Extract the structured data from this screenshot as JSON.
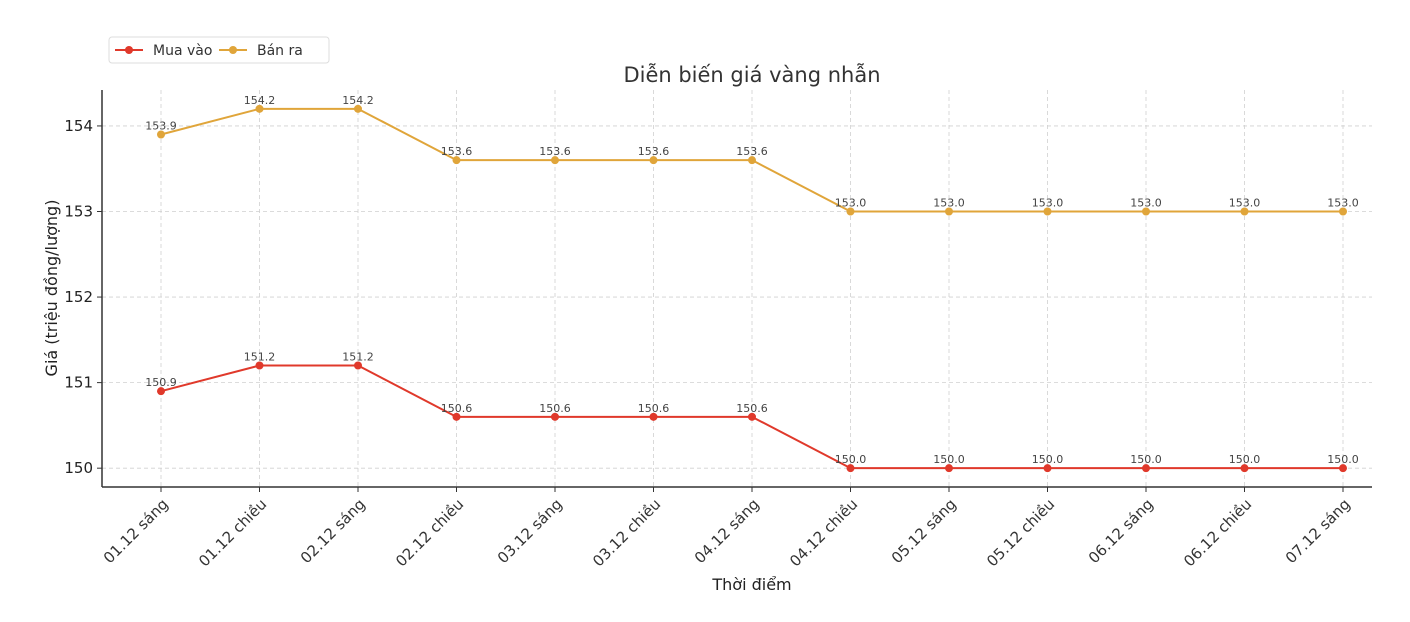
{
  "chart_data": {
    "type": "line",
    "title": "Diễn biến giá vàng nhẫn",
    "xlabel": "Thời điểm",
    "ylabel": "Giá (triệu đồng/lượng)",
    "categories": [
      "01.12 sáng",
      "01.12 chiều",
      "02.12 sáng",
      "02.12 chiều",
      "03.12 sáng",
      "03.12 chiều",
      "04.12 sáng",
      "04.12 chiều",
      "05.12 sáng",
      "05.12 chiều",
      "06.12 sáng",
      "06.12 chiều",
      "07.12 sáng"
    ],
    "series": [
      {
        "name": "Mua vào",
        "color": "#e0392b",
        "values": [
          150.9,
          151.2,
          151.2,
          150.6,
          150.6,
          150.6,
          150.6,
          150.0,
          150.0,
          150.0,
          150.0,
          150.0,
          150.0
        ]
      },
      {
        "name": "Bán ra",
        "color": "#e0a53a",
        "values": [
          153.9,
          154.2,
          154.2,
          153.6,
          153.6,
          153.6,
          153.6,
          153.0,
          153.0,
          153.0,
          153.0,
          153.0,
          153.0
        ]
      }
    ],
    "yticks": [
      150,
      151,
      152,
      153,
      154
    ],
    "ylim": [
      149.78,
      154.42
    ],
    "grid": true,
    "legend_placement": "top-left",
    "data_labels": true
  }
}
